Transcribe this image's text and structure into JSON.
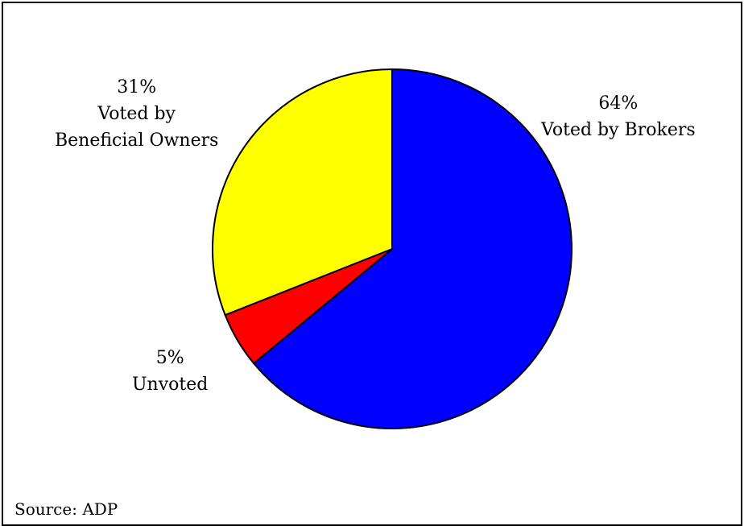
{
  "chart_data": {
    "type": "pie",
    "title": "",
    "slices": [
      {
        "label": "Voted by Brokers",
        "value": 64,
        "display": "64%",
        "color": "#0000FF"
      },
      {
        "label": "Unvoted",
        "value": 5,
        "display": "5%",
        "color": "#FF0000"
      },
      {
        "label": "Voted by Beneficial Owners",
        "value": 31,
        "display": "31%",
        "color": "#FFFF00"
      }
    ],
    "start_angle_deg": 0,
    "direction": "clockwise",
    "legend": "none"
  },
  "labels": {
    "brokers": {
      "pct": "64%",
      "line1": "Voted by Brokers"
    },
    "unvoted": {
      "pct": "5%",
      "line1": "Unvoted"
    },
    "owners": {
      "pct": "31%",
      "line1": "Voted by",
      "line2": "Beneficial Owners"
    }
  },
  "source": "Source: ADP"
}
